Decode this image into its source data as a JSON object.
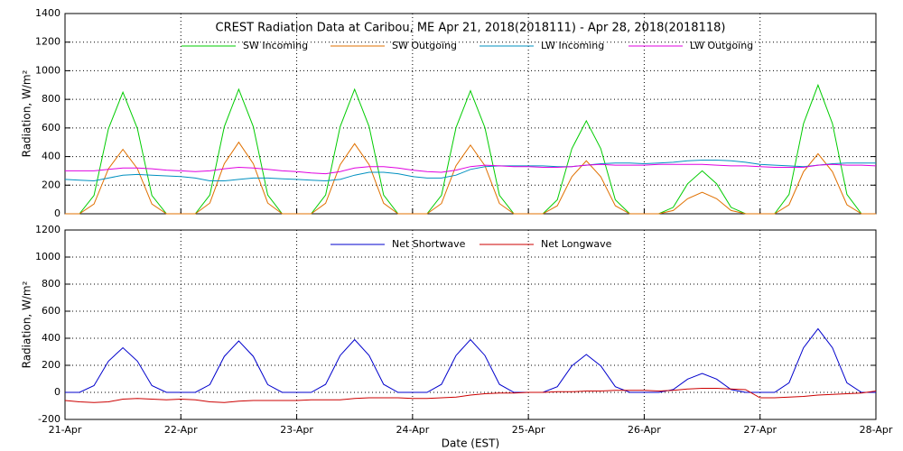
{
  "chart_data": [
    {
      "type": "line",
      "title": "CREST Radiation Data at Caribou, ME   Apr 21, 2018(2018111) - Apr 28, 2018(2018118)",
      "ylabel": "Radiation, W/m²",
      "grid": true,
      "legend": "top",
      "xlim": [
        0,
        7
      ],
      "xticks": [
        0,
        1,
        2,
        3,
        4,
        5,
        6,
        7
      ],
      "ylim": [
        0,
        1400
      ],
      "yticks": [
        0,
        200,
        400,
        600,
        800,
        1000,
        1200,
        1400
      ],
      "x": [
        0,
        0.125,
        0.25,
        0.375,
        0.5,
        0.625,
        0.75,
        0.875,
        1,
        1.125,
        1.25,
        1.375,
        1.5,
        1.625,
        1.75,
        1.875,
        2,
        2.125,
        2.25,
        2.375,
        2.5,
        2.625,
        2.75,
        2.875,
        3,
        3.125,
        3.25,
        3.375,
        3.5,
        3.625,
        3.75,
        3.875,
        4,
        4.125,
        4.25,
        4.375,
        4.5,
        4.625,
        4.75,
        4.875,
        5,
        5.125,
        5.25,
        5.375,
        5.5,
        5.625,
        5.75,
        5.875,
        6,
        6.125,
        6.25,
        6.375,
        6.5,
        6.625,
        6.75,
        6.875,
        7
      ],
      "series": [
        {
          "name": "SW Incoming",
          "color": "#00cc00",
          "values": [
            0,
            0,
            128,
            595,
            850,
            595,
            128,
            0,
            0,
            0,
            131,
            609,
            870,
            609,
            131,
            0,
            0,
            0,
            131,
            609,
            870,
            609,
            131,
            0,
            0,
            0,
            129,
            602,
            860,
            602,
            129,
            0,
            0,
            0,
            98,
            455,
            650,
            455,
            98,
            0,
            0,
            0,
            45,
            210,
            300,
            210,
            45,
            0,
            0,
            0,
            135,
            630,
            900,
            630,
            135,
            0,
            0
          ]
        },
        {
          "name": "SW Outgoing",
          "color": "#e07000",
          "values": [
            0,
            0,
            68,
            315,
            450,
            315,
            68,
            0,
            0,
            0,
            75,
            350,
            500,
            350,
            75,
            0,
            0,
            0,
            74,
            343,
            490,
            343,
            74,
            0,
            0,
            0,
            72,
            336,
            480,
            336,
            72,
            0,
            0,
            0,
            56,
            259,
            370,
            259,
            56,
            0,
            0,
            0,
            23,
            105,
            150,
            105,
            23,
            0,
            0,
            0,
            63,
            294,
            420,
            294,
            63,
            0,
            0
          ]
        },
        {
          "name": "LW Incoming",
          "color": "#0090c0",
          "values": [
            240,
            235,
            230,
            250,
            270,
            275,
            270,
            265,
            260,
            250,
            230,
            230,
            240,
            250,
            250,
            245,
            240,
            235,
            230,
            240,
            270,
            290,
            290,
            280,
            260,
            250,
            250,
            270,
            310,
            330,
            335,
            335,
            335,
            335,
            330,
            330,
            340,
            350,
            355,
            355,
            350,
            355,
            360,
            370,
            375,
            375,
            370,
            360,
            345,
            340,
            335,
            330,
            340,
            350,
            355,
            355,
            355
          ]
        },
        {
          "name": "LW Outgoing",
          "color": "#e000e0",
          "values": [
            300,
            300,
            300,
            310,
            320,
            320,
            315,
            305,
            300,
            295,
            300,
            315,
            325,
            320,
            310,
            300,
            295,
            285,
            280,
            295,
            320,
            330,
            330,
            320,
            305,
            295,
            290,
            305,
            330,
            340,
            335,
            330,
            330,
            325,
            325,
            330,
            340,
            345,
            340,
            340,
            340,
            345,
            345,
            345,
            345,
            340,
            335,
            335,
            330,
            325,
            325,
            325,
            340,
            345,
            340,
            340,
            335
          ]
        }
      ]
    },
    {
      "type": "line",
      "xlabel": "Date (EST)",
      "ylabel": "Radiation, W/m²",
      "grid": true,
      "legend": "top",
      "xlim": [
        0,
        7
      ],
      "xticks": [
        {
          "value": 0,
          "label": "21-Apr"
        },
        {
          "value": 1,
          "label": "22-Apr"
        },
        {
          "value": 2,
          "label": "23-Apr"
        },
        {
          "value": 3,
          "label": "24-Apr"
        },
        {
          "value": 4,
          "label": "25-Apr"
        },
        {
          "value": 5,
          "label": "26-Apr"
        },
        {
          "value": 6,
          "label": "27-Apr"
        },
        {
          "value": 7,
          "label": "28-Apr"
        }
      ],
      "ylim": [
        -200,
        1200
      ],
      "yticks": [
        -200,
        0,
        200,
        400,
        600,
        800,
        1000,
        1200
      ],
      "x": [
        0,
        0.125,
        0.25,
        0.375,
        0.5,
        0.625,
        0.75,
        0.875,
        1,
        1.125,
        1.25,
        1.375,
        1.5,
        1.625,
        1.75,
        1.875,
        2,
        2.125,
        2.25,
        2.375,
        2.5,
        2.625,
        2.75,
        2.875,
        3,
        3.125,
        3.25,
        3.375,
        3.5,
        3.625,
        3.75,
        3.875,
        4,
        4.125,
        4.25,
        4.375,
        4.5,
        4.625,
        4.75,
        4.875,
        5,
        5.125,
        5.25,
        5.375,
        5.5,
        5.625,
        5.75,
        5.875,
        6,
        6.125,
        6.25,
        6.375,
        6.5,
        6.625,
        6.75,
        6.875,
        7
      ],
      "series": [
        {
          "name": "Net Shortwave",
          "color": "#0000cc",
          "values": [
            0,
            0,
            50,
            231,
            330,
            231,
            50,
            0,
            0,
            0,
            57,
            266,
            380,
            266,
            57,
            0,
            0,
            0,
            59,
            273,
            390,
            273,
            59,
            0,
            0,
            0,
            59,
            273,
            390,
            273,
            59,
            0,
            0,
            0,
            42,
            196,
            280,
            196,
            42,
            0,
            0,
            0,
            21,
            98,
            140,
            98,
            21,
            0,
            0,
            0,
            71,
            329,
            470,
            329,
            71,
            0,
            0
          ]
        },
        {
          "name": "Net Longwave",
          "color": "#cc0000",
          "values": [
            -60,
            -70,
            -75,
            -70,
            -50,
            -45,
            -50,
            -55,
            -50,
            -55,
            -70,
            -75,
            -65,
            -60,
            -60,
            -60,
            -60,
            -55,
            -55,
            -55,
            -45,
            -40,
            -40,
            -40,
            -45,
            -45,
            -40,
            -35,
            -20,
            -10,
            -5,
            -5,
            0,
            0,
            5,
            5,
            10,
            10,
            15,
            15,
            15,
            10,
            15,
            25,
            30,
            30,
            25,
            20,
            -40,
            -40,
            -35,
            -30,
            -20,
            -15,
            -10,
            -5,
            10
          ]
        }
      ]
    }
  ]
}
